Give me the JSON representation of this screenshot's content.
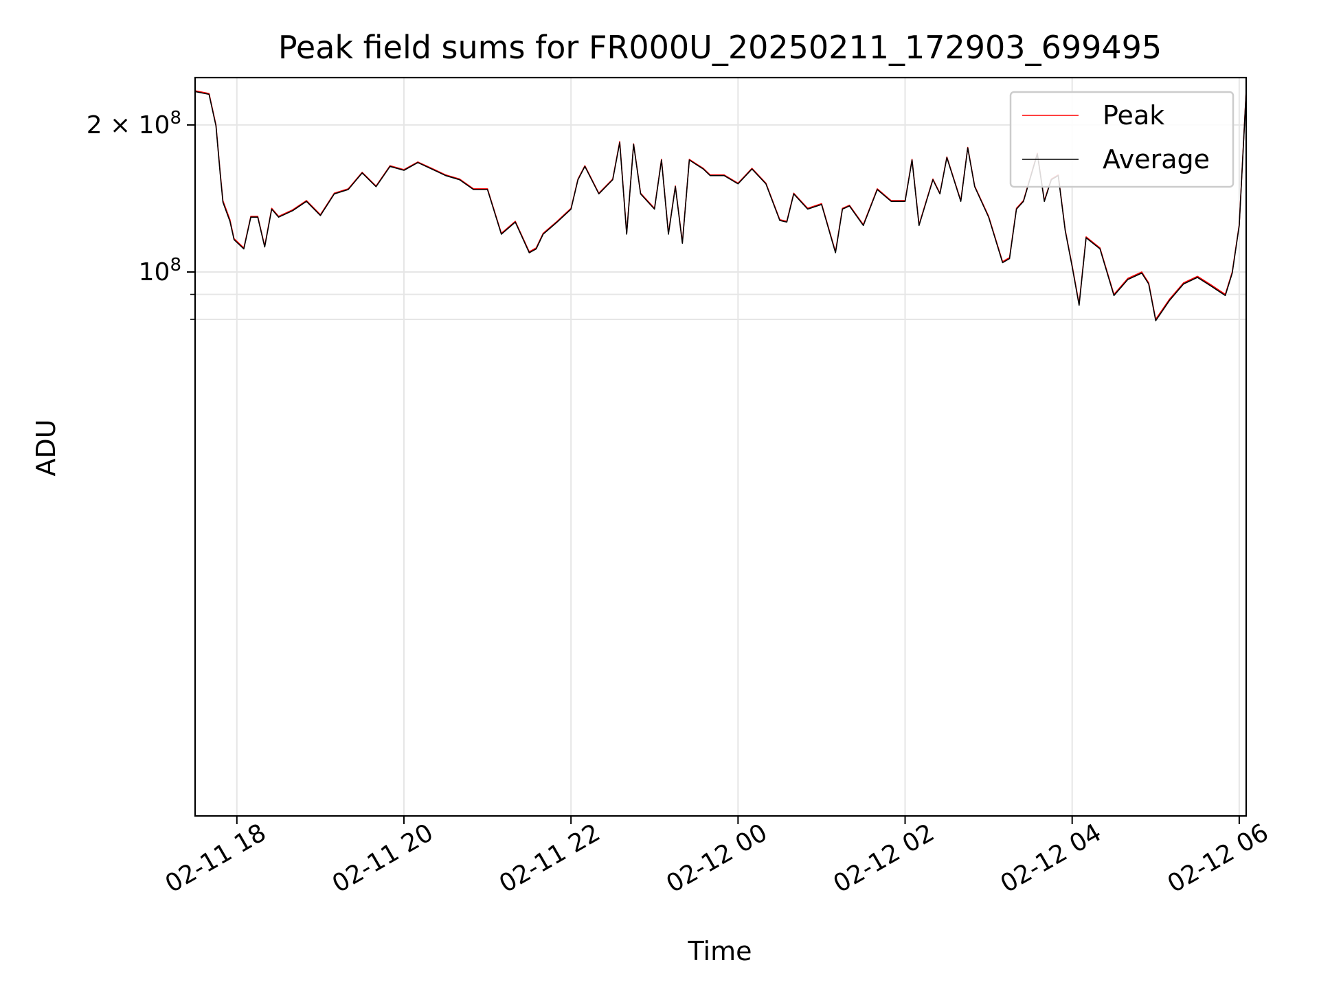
{
  "chart_data": {
    "type": "line",
    "title": "Peak field sums for FR000U_20250211_172903_699495",
    "xlabel": "Time",
    "ylabel": "ADU",
    "x_scale": "time",
    "y_scale": "log",
    "xlim": [
      "2025-02-11 17:30",
      "2025-02-12 06:05"
    ],
    "ylim": [
      7700000,
      250000000
    ],
    "x_ticks": [
      {
        "value": "2025-02-11 18:00",
        "label": "02-11 18"
      },
      {
        "value": "2025-02-11 20:00",
        "label": "02-11 20"
      },
      {
        "value": "2025-02-11 22:00",
        "label": "02-11 22"
      },
      {
        "value": "2025-02-12 00:00",
        "label": "02-12 00"
      },
      {
        "value": "2025-02-12 02:00",
        "label": "02-12 02"
      },
      {
        "value": "2025-02-12 04:00",
        "label": "02-12 04"
      },
      {
        "value": "2025-02-12 06:00",
        "label": "02-12 06"
      }
    ],
    "y_ticks_major": [
      {
        "value": 100000000,
        "base": "10",
        "exp": "8",
        "mult": ""
      },
      {
        "value": 200000000,
        "base": "10",
        "exp": "8",
        "mult": "2 × "
      }
    ],
    "y_ticks_minor": [
      80000000,
      90000000
    ],
    "grid": true,
    "legend": {
      "position": "top-right"
    },
    "series": [
      {
        "name": "Peak",
        "color": "#ff0000",
        "x": [
          "2025-02-11 17:30",
          "2025-02-11 17:40",
          "2025-02-11 17:45",
          "2025-02-11 17:48",
          "2025-02-11 17:50",
          "2025-02-11 17:52",
          "2025-02-11 17:55",
          "2025-02-11 17:58",
          "2025-02-11 18:05",
          "2025-02-11 18:10",
          "2025-02-11 18:15",
          "2025-02-11 18:20",
          "2025-02-11 18:25",
          "2025-02-11 18:30",
          "2025-02-11 18:40",
          "2025-02-11 18:50",
          "2025-02-11 19:00",
          "2025-02-11 19:10",
          "2025-02-11 19:20",
          "2025-02-11 19:30",
          "2025-02-11 19:40",
          "2025-02-11 19:50",
          "2025-02-11 20:00",
          "2025-02-11 20:10",
          "2025-02-11 20:20",
          "2025-02-11 20:30",
          "2025-02-11 20:40",
          "2025-02-11 20:50",
          "2025-02-11 21:00",
          "2025-02-11 21:10",
          "2025-02-11 21:20",
          "2025-02-11 21:30",
          "2025-02-11 21:35",
          "2025-02-11 21:40",
          "2025-02-11 21:50",
          "2025-02-11 22:00",
          "2025-02-11 22:05",
          "2025-02-11 22:10",
          "2025-02-11 22:20",
          "2025-02-11 22:30",
          "2025-02-11 22:35",
          "2025-02-11 22:40",
          "2025-02-11 22:45",
          "2025-02-11 22:50",
          "2025-02-11 23:00",
          "2025-02-11 23:05",
          "2025-02-11 23:10",
          "2025-02-11 23:15",
          "2025-02-11 23:20",
          "2025-02-11 23:25",
          "2025-02-11 23:35",
          "2025-02-11 23:40",
          "2025-02-11 23:50",
          "2025-02-12 00:00",
          "2025-02-12 00:10",
          "2025-02-12 00:20",
          "2025-02-12 00:30",
          "2025-02-12 00:35",
          "2025-02-12 00:40",
          "2025-02-12 00:50",
          "2025-02-12 01:00",
          "2025-02-12 01:10",
          "2025-02-12 01:15",
          "2025-02-12 01:20",
          "2025-02-12 01:30",
          "2025-02-12 01:40",
          "2025-02-12 01:50",
          "2025-02-12 02:00",
          "2025-02-12 02:05",
          "2025-02-12 02:10",
          "2025-02-12 02:20",
          "2025-02-12 02:25",
          "2025-02-12 02:30",
          "2025-02-12 02:40",
          "2025-02-12 02:45",
          "2025-02-12 02:50",
          "2025-02-12 03:00",
          "2025-02-12 03:10",
          "2025-02-12 03:15",
          "2025-02-12 03:20",
          "2025-02-12 03:25",
          "2025-02-12 03:35",
          "2025-02-12 03:40",
          "2025-02-12 03:45",
          "2025-02-12 03:50",
          "2025-02-12 03:55",
          "2025-02-12 04:00",
          "2025-02-12 04:05",
          "2025-02-12 04:10",
          "2025-02-12 04:20",
          "2025-02-12 04:30",
          "2025-02-12 04:40",
          "2025-02-12 04:50",
          "2025-02-12 04:55",
          "2025-02-12 05:00",
          "2025-02-12 05:10",
          "2025-02-12 05:20",
          "2025-02-12 05:30",
          "2025-02-12 05:40",
          "2025-02-12 05:50",
          "2025-02-12 05:55",
          "2025-02-12 06:00",
          "2025-02-12 06:05"
        ],
        "values": [
          235000000,
          232000000,
          200000000,
          160000000,
          140000000,
          135000000,
          128000000,
          117000000,
          112000000,
          130000000,
          130000000,
          113000000,
          135000000,
          130000000,
          134000000,
          140000000,
          131000000,
          145000000,
          148000000,
          160000000,
          150000000,
          165000000,
          162000000,
          168000000,
          163000000,
          158000000,
          155000000,
          148000000,
          148000000,
          120000000,
          127000000,
          110000000,
          112000000,
          120000000,
          127000000,
          135000000,
          155000000,
          165000000,
          145000000,
          155000000,
          185000000,
          120000000,
          183000000,
          145000000,
          135000000,
          170000000,
          120000000,
          150000000,
          115000000,
          170000000,
          163000000,
          158000000,
          158000000,
          152000000,
          163000000,
          152000000,
          128000000,
          127000000,
          145000000,
          135000000,
          138000000,
          110000000,
          135000000,
          137000000,
          125000000,
          148000000,
          140000000,
          140000000,
          170000000,
          125000000,
          155000000,
          145000000,
          172000000,
          140000000,
          180000000,
          150000000,
          130000000,
          105000000,
          107000000,
          135000000,
          140000000,
          175000000,
          140000000,
          155000000,
          158000000,
          122000000,
          103000000,
          86000000,
          118000000,
          112000000,
          90000000,
          97000000,
          100000000,
          95000000,
          80000000,
          88000000,
          95000000,
          98000000,
          94000000,
          90000000,
          100000000,
          125000000,
          235000000
        ]
      },
      {
        "name": "Average",
        "color": "#000000",
        "x": [
          "2025-02-11 17:30",
          "2025-02-11 17:40",
          "2025-02-11 17:45",
          "2025-02-11 17:48",
          "2025-02-11 17:50",
          "2025-02-11 17:52",
          "2025-02-11 17:55",
          "2025-02-11 17:58",
          "2025-02-11 18:05",
          "2025-02-11 18:10",
          "2025-02-11 18:15",
          "2025-02-11 18:20",
          "2025-02-11 18:25",
          "2025-02-11 18:30",
          "2025-02-11 18:40",
          "2025-02-11 18:50",
          "2025-02-11 19:00",
          "2025-02-11 19:10",
          "2025-02-11 19:20",
          "2025-02-11 19:30",
          "2025-02-11 19:40",
          "2025-02-11 19:50",
          "2025-02-11 20:00",
          "2025-02-11 20:10",
          "2025-02-11 20:20",
          "2025-02-11 20:30",
          "2025-02-11 20:40",
          "2025-02-11 20:50",
          "2025-02-11 21:00",
          "2025-02-11 21:10",
          "2025-02-11 21:20",
          "2025-02-11 21:30",
          "2025-02-11 21:35",
          "2025-02-11 21:40",
          "2025-02-11 21:50",
          "2025-02-11 22:00",
          "2025-02-11 22:05",
          "2025-02-11 22:10",
          "2025-02-11 22:20",
          "2025-02-11 22:30",
          "2025-02-11 22:35",
          "2025-02-11 22:40",
          "2025-02-11 22:45",
          "2025-02-11 22:50",
          "2025-02-11 23:00",
          "2025-02-11 23:05",
          "2025-02-11 23:10",
          "2025-02-11 23:15",
          "2025-02-11 23:20",
          "2025-02-11 23:25",
          "2025-02-11 23:35",
          "2025-02-11 23:40",
          "2025-02-11 23:50",
          "2025-02-12 00:00",
          "2025-02-12 00:10",
          "2025-02-12 00:20",
          "2025-02-12 00:30",
          "2025-02-12 00:35",
          "2025-02-12 00:40",
          "2025-02-12 00:50",
          "2025-02-12 01:00",
          "2025-02-12 01:10",
          "2025-02-12 01:15",
          "2025-02-12 01:20",
          "2025-02-12 01:30",
          "2025-02-12 01:40",
          "2025-02-12 01:50",
          "2025-02-12 02:00",
          "2025-02-12 02:05",
          "2025-02-12 02:10",
          "2025-02-12 02:20",
          "2025-02-12 02:25",
          "2025-02-12 02:30",
          "2025-02-12 02:40",
          "2025-02-12 02:45",
          "2025-02-12 02:50",
          "2025-02-12 03:00",
          "2025-02-12 03:10",
          "2025-02-12 03:15",
          "2025-02-12 03:20",
          "2025-02-12 03:25",
          "2025-02-12 03:35",
          "2025-02-12 03:40",
          "2025-02-12 03:45",
          "2025-02-12 03:50",
          "2025-02-12 03:55",
          "2025-02-12 04:00",
          "2025-02-12 04:05",
          "2025-02-12 04:10",
          "2025-02-12 04:20",
          "2025-02-12 04:30",
          "2025-02-12 04:40",
          "2025-02-12 04:50",
          "2025-02-12 04:55",
          "2025-02-12 05:00",
          "2025-02-12 05:10",
          "2025-02-12 05:20",
          "2025-02-12 05:30",
          "2025-02-12 05:40",
          "2025-02-12 05:50",
          "2025-02-12 05:55",
          "2025-02-12 06:00",
          "2025-02-12 06:05"
        ],
        "values": [
          234000000,
          231000000,
          199000000,
          159000000,
          139000000,
          134000000,
          127000000,
          116500000,
          111500000,
          129500000,
          129500000,
          112500000,
          134500000,
          129500000,
          133500000,
          139500000,
          130500000,
          144500000,
          147500000,
          159500000,
          149500000,
          164500000,
          161500000,
          167500000,
          162500000,
          157500000,
          154500000,
          147500000,
          147500000,
          119500000,
          126500000,
          109500000,
          111500000,
          119500000,
          126500000,
          134500000,
          154500000,
          164500000,
          144500000,
          154500000,
          184000000,
          119500000,
          182500000,
          144500000,
          134500000,
          169500000,
          119500000,
          149500000,
          114500000,
          169500000,
          162500000,
          157500000,
          157500000,
          151500000,
          162500000,
          151500000,
          127500000,
          126500000,
          144500000,
          134500000,
          137500000,
          109500000,
          134500000,
          136500000,
          124500000,
          147500000,
          139500000,
          139500000,
          169500000,
          124500000,
          154500000,
          144500000,
          171500000,
          139500000,
          179500000,
          149500000,
          129500000,
          104500000,
          106500000,
          134500000,
          139500000,
          174500000,
          139500000,
          154500000,
          157500000,
          121500000,
          102500000,
          85500000,
          117500000,
          111500000,
          89500000,
          96500000,
          99500000,
          94500000,
          79500000,
          87500000,
          94500000,
          97500000,
          93500000,
          89500000,
          99500000,
          124500000,
          234000000
        ]
      }
    ]
  }
}
